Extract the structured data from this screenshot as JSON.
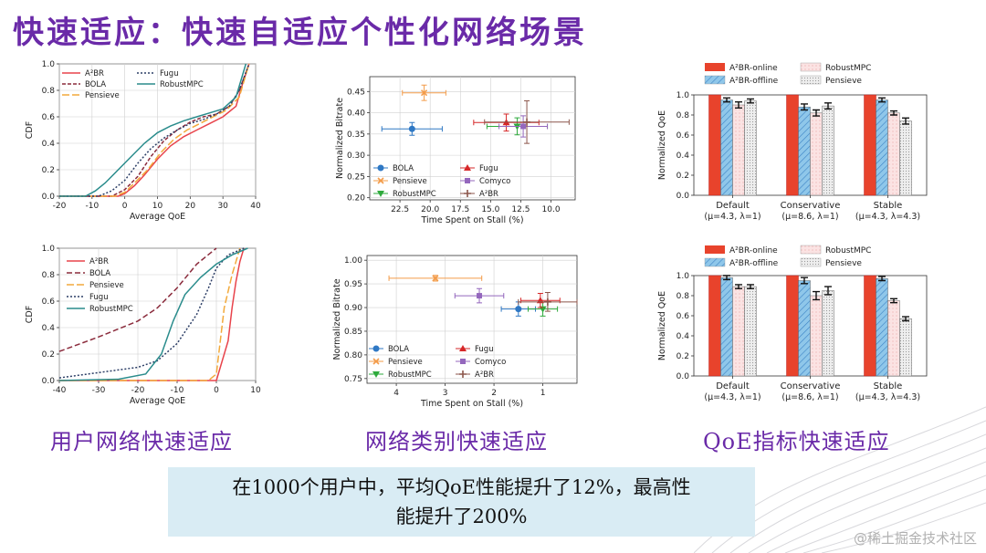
{
  "title": "快速适应：快速自适应个性化网络场景",
  "captions": [
    "用户网络快速适应",
    "网络类别快速适应",
    "QoE指标快速适应"
  ],
  "callout": {
    "line1": "在1000个用户中，平均QoE性能提升了12%，最高性",
    "line2": "能提升了200%"
  },
  "watermark": "@稀土掘金技术社区",
  "colors": {
    "a2br": "#e8434b",
    "bola": "#8b2b3c",
    "pensieve": "#f2a93b",
    "fugu": "#2c3e66",
    "robust": "#2a8c8c",
    "sc_bola": "#2f78c4",
    "sc_pensieve": "#f39c4a",
    "sc_robust": "#2eaa3c",
    "sc_fugu": "#d62728",
    "sc_comyco": "#9467bd",
    "sc_a2br": "#8c564b",
    "bar_online": "#e8432c",
    "bar_offline": "#8fc7ea",
    "bar_robust": "#fbe3e3",
    "bar_pensieve": "#dcdcdc"
  },
  "chart_data": [
    {
      "type": "line",
      "id": "cdf1",
      "xlabel": "Average QoE",
      "ylabel": "CDF",
      "xlim": [
        -20,
        40
      ],
      "ylim": [
        0,
        1
      ],
      "xticks": [
        -20,
        -10,
        0,
        10,
        20,
        30,
        40
      ],
      "yticks": [
        0.0,
        0.2,
        0.4,
        0.6,
        0.8,
        1.0
      ],
      "legend": [
        "A²BR",
        "BOLA",
        "Pensieve",
        "Fugu",
        "RobustMPC"
      ],
      "series": [
        {
          "name": "A²BR",
          "color_key": "a2br",
          "dash": "",
          "points": [
            [
              -20,
              0
            ],
            [
              -2,
              0
            ],
            [
              0,
              0.02
            ],
            [
              3,
              0.08
            ],
            [
              6,
              0.16
            ],
            [
              10,
              0.28
            ],
            [
              14,
              0.38
            ],
            [
              18,
              0.45
            ],
            [
              22,
              0.5
            ],
            [
              26,
              0.55
            ],
            [
              30,
              0.6
            ],
            [
              34,
              0.68
            ],
            [
              36,
              0.85
            ],
            [
              38,
              1.0
            ]
          ]
        },
        {
          "name": "BOLA",
          "color_key": "bola",
          "dash": "4,2",
          "points": [
            [
              -20,
              0
            ],
            [
              -4,
              0
            ],
            [
              0,
              0.05
            ],
            [
              4,
              0.15
            ],
            [
              8,
              0.3
            ],
            [
              12,
              0.42
            ],
            [
              16,
              0.5
            ],
            [
              20,
              0.56
            ],
            [
              24,
              0.6
            ],
            [
              28,
              0.62
            ],
            [
              32,
              0.68
            ],
            [
              35,
              0.8
            ],
            [
              38,
              1.0
            ]
          ]
        },
        {
          "name": "Pensieve",
          "color_key": "pensieve",
          "dash": "8,3",
          "points": [
            [
              -20,
              0
            ],
            [
              -3,
              0
            ],
            [
              0,
              0.03
            ],
            [
              3,
              0.1
            ],
            [
              7,
              0.2
            ],
            [
              11,
              0.33
            ],
            [
              15,
              0.43
            ],
            [
              19,
              0.5
            ],
            [
              23,
              0.55
            ],
            [
              27,
              0.6
            ],
            [
              31,
              0.65
            ],
            [
              35,
              0.75
            ],
            [
              38,
              1.0
            ]
          ]
        },
        {
          "name": "Fugu",
          "color_key": "fugu",
          "dash": "2,2",
          "points": [
            [
              -20,
              0
            ],
            [
              -8,
              0
            ],
            [
              -4,
              0.04
            ],
            [
              0,
              0.12
            ],
            [
              4,
              0.25
            ],
            [
              8,
              0.36
            ],
            [
              12,
              0.44
            ],
            [
              16,
              0.5
            ],
            [
              20,
              0.55
            ],
            [
              24,
              0.58
            ],
            [
              28,
              0.62
            ],
            [
              32,
              0.68
            ],
            [
              35,
              0.8
            ],
            [
              38,
              1.0
            ]
          ]
        },
        {
          "name": "RobustMPC",
          "color_key": "robust",
          "dash": "",
          "points": [
            [
              -20,
              0
            ],
            [
              -12,
              0
            ],
            [
              -9,
              0.04
            ],
            [
              -6,
              0.1
            ],
            [
              -2,
              0.2
            ],
            [
              2,
              0.3
            ],
            [
              6,
              0.4
            ],
            [
              10,
              0.48
            ],
            [
              14,
              0.53
            ],
            [
              18,
              0.57
            ],
            [
              22,
              0.6
            ],
            [
              26,
              0.63
            ],
            [
              30,
              0.66
            ],
            [
              34,
              0.75
            ],
            [
              37,
              1.0
            ]
          ]
        }
      ]
    },
    {
      "type": "line",
      "id": "cdf2",
      "xlabel": "Average QoE",
      "ylabel": "CDF",
      "xlim": [
        -40,
        10
      ],
      "ylim": [
        0,
        1
      ],
      "xticks": [
        -40,
        -30,
        -20,
        -10,
        0,
        10
      ],
      "yticks": [
        0.0,
        0.2,
        0.4,
        0.6,
        0.8,
        1.0
      ],
      "legend": [
        "A²BR",
        "BOLA",
        "Pensieve",
        "Fugu",
        "RobustMPC"
      ],
      "series": [
        {
          "name": "A²BR",
          "color_key": "a2br",
          "dash": "",
          "points": [
            [
              -40,
              0
            ],
            [
              0,
              0
            ],
            [
              1,
              0.1
            ],
            [
              3,
              0.3
            ],
            [
              4,
              0.55
            ],
            [
              5,
              0.75
            ],
            [
              6,
              0.9
            ],
            [
              7,
              1.0
            ]
          ]
        },
        {
          "name": "BOLA",
          "color_key": "bola",
          "dash": "6,3",
          "points": [
            [
              -40,
              0.22
            ],
            [
              -30,
              0.33
            ],
            [
              -20,
              0.45
            ],
            [
              -15,
              0.55
            ],
            [
              -10,
              0.7
            ],
            [
              -5,
              0.88
            ],
            [
              0,
              1.0
            ]
          ]
        },
        {
          "name": "Pensieve",
          "color_key": "pensieve",
          "dash": "8,3",
          "points": [
            [
              -40,
              0
            ],
            [
              -2,
              0
            ],
            [
              0,
              0.05
            ],
            [
              1,
              0.3
            ],
            [
              2,
              0.55
            ],
            [
              4,
              0.8
            ],
            [
              6,
              1.0
            ]
          ]
        },
        {
          "name": "Fugu",
          "color_key": "fugu",
          "dash": "2,2",
          "points": [
            [
              -40,
              0.02
            ],
            [
              -30,
              0.06
            ],
            [
              -20,
              0.1
            ],
            [
              -15,
              0.15
            ],
            [
              -10,
              0.28
            ],
            [
              -5,
              0.5
            ],
            [
              -2,
              0.7
            ],
            [
              0,
              0.85
            ],
            [
              3,
              0.95
            ],
            [
              7,
              1.0
            ]
          ]
        },
        {
          "name": "RobustMPC",
          "color_key": "robust",
          "dash": "",
          "points": [
            [
              -40,
              0
            ],
            [
              -25,
              0.01
            ],
            [
              -18,
              0.05
            ],
            [
              -14,
              0.2
            ],
            [
              -11,
              0.45
            ],
            [
              -8,
              0.65
            ],
            [
              -4,
              0.78
            ],
            [
              0,
              0.88
            ],
            [
              4,
              0.95
            ],
            [
              8,
              1.0
            ]
          ]
        }
      ]
    },
    {
      "type": "scatter",
      "id": "sc1",
      "xlabel": "Time Spent on Stall (%)",
      "ylabel": "Normalized Bitrate",
      "xlim": [
        25,
        8
      ],
      "ylim": [
        0.195,
        0.485
      ],
      "xticks": [
        22.5,
        20.0,
        17.5,
        15.0,
        12.5,
        10.0
      ],
      "yticks": [
        0.2,
        0.25,
        0.3,
        0.35,
        0.4,
        0.45
      ],
      "legend": [
        "BOLA",
        "Pensieve",
        "RobustMPC",
        "Fugu",
        "Comyco",
        "A²BR"
      ],
      "points": [
        {
          "name": "BOLA",
          "color_key": "sc_bola",
          "marker": "circle",
          "x": 21.5,
          "y": 0.362,
          "xerr": 2.5,
          "yerr": 0.015
        },
        {
          "name": "Pensieve",
          "color_key": "sc_pensieve",
          "marker": "x",
          "x": 20.5,
          "y": 0.447,
          "xerr": 1.8,
          "yerr": 0.018
        },
        {
          "name": "RobustMPC",
          "color_key": "sc_robust",
          "marker": "tri-down",
          "x": 12.8,
          "y": 0.368,
          "xerr": 2.5,
          "yerr": 0.02
        },
        {
          "name": "Fugu",
          "color_key": "sc_fugu",
          "marker": "tri-up",
          "x": 13.7,
          "y": 0.377,
          "xerr": 2.7,
          "yerr": 0.02
        },
        {
          "name": "Comyco",
          "color_key": "sc_comyco",
          "marker": "square",
          "x": 12.3,
          "y": 0.368,
          "xerr": 2.0,
          "yerr": 0.025
        },
        {
          "name": "A²BR",
          "color_key": "sc_a2br",
          "marker": "plus",
          "x": 12.0,
          "y": 0.378,
          "xerr": 3.5,
          "yerr": 0.05
        }
      ]
    },
    {
      "type": "scatter",
      "id": "sc2",
      "xlabel": "Time Spent on Stall (%)",
      "ylabel": "Normalized Bitrate",
      "xlim": [
        4.6,
        0.3
      ],
      "ylim": [
        0.74,
        1.01
      ],
      "xticks": [
        4,
        3,
        2,
        1
      ],
      "yticks": [
        0.75,
        0.8,
        0.85,
        0.9,
        0.95,
        1.0
      ],
      "legend": [
        "BOLA",
        "Pensieve",
        "RobustMPC",
        "Fugu",
        "Comyco",
        "A²BR"
      ],
      "points": [
        {
          "name": "BOLA",
          "color_key": "sc_bola",
          "marker": "circle",
          "x": 1.5,
          "y": 0.897,
          "xerr": 0.35,
          "yerr": 0.015
        },
        {
          "name": "Pensieve",
          "color_key": "sc_pensieve",
          "marker": "x",
          "x": 3.2,
          "y": 0.962,
          "xerr": 0.95,
          "yerr": 0.006
        },
        {
          "name": "RobustMPC",
          "color_key": "sc_robust",
          "marker": "tri-down",
          "x": 1.0,
          "y": 0.897,
          "xerr": 0.3,
          "yerr": 0.015
        },
        {
          "name": "Fugu",
          "color_key": "sc_fugu",
          "marker": "tri-up",
          "x": 1.05,
          "y": 0.915,
          "xerr": 0.4,
          "yerr": 0.015
        },
        {
          "name": "Comyco",
          "color_key": "sc_comyco",
          "marker": "square",
          "x": 2.3,
          "y": 0.925,
          "xerr": 0.5,
          "yerr": 0.015
        },
        {
          "name": "A²BR",
          "color_key": "sc_a2br",
          "marker": "plus",
          "x": 0.9,
          "y": 0.912,
          "xerr": 0.6,
          "yerr": 0.02
        }
      ]
    },
    {
      "type": "bar",
      "id": "bar1",
      "ylabel": "Normalized QoE",
      "ylim": [
        0,
        1.0
      ],
      "yticks": [
        0.0,
        0.2,
        0.4,
        0.6,
        0.8,
        1.0
      ],
      "categories": [
        [
          "Default",
          "(μ=4.3, λ=1)"
        ],
        [
          "Conservative",
          "(μ=8.6, λ=1)"
        ],
        [
          "Stable",
          "(μ=4.3, λ=4.3)"
        ]
      ],
      "series": [
        {
          "name": "A²BR-online",
          "color_key": "bar_online",
          "values": [
            1.0,
            1.0,
            1.0
          ],
          "err": [
            0,
            0,
            0
          ]
        },
        {
          "name": "A²BR-offline",
          "color_key": "bar_offline",
          "values": [
            0.95,
            0.88,
            0.95
          ],
          "err": [
            0.02,
            0.03,
            0.02
          ]
        },
        {
          "name": "RobustMPC",
          "color_key": "bar_robust",
          "values": [
            0.9,
            0.82,
            0.82
          ],
          "err": [
            0.03,
            0.03,
            0.02
          ]
        },
        {
          "name": "Pensieve",
          "color_key": "bar_pensieve",
          "values": [
            0.94,
            0.89,
            0.74
          ],
          "err": [
            0.02,
            0.03,
            0.03
          ]
        }
      ]
    },
    {
      "type": "bar",
      "id": "bar2",
      "ylabel": "Normalized QoE",
      "ylim": [
        0,
        1.0
      ],
      "yticks": [
        0.0,
        0.2,
        0.4,
        0.6,
        0.8,
        1.0
      ],
      "categories": [
        [
          "Default",
          "(μ=4.3, λ=1)"
        ],
        [
          "Conservative",
          "(μ=8.6, λ=1)"
        ],
        [
          "Stable",
          "(μ=4.3, λ=4.3)"
        ]
      ],
      "series": [
        {
          "name": "A²BR-online",
          "color_key": "bar_online",
          "values": [
            1.0,
            1.0,
            1.0
          ],
          "err": [
            0,
            0,
            0
          ]
        },
        {
          "name": "A²BR-offline",
          "color_key": "bar_offline",
          "values": [
            0.98,
            0.95,
            0.97
          ],
          "err": [
            0.02,
            0.03,
            0.02
          ]
        },
        {
          "name": "RobustMPC",
          "color_key": "bar_robust",
          "values": [
            0.89,
            0.8,
            0.75
          ],
          "err": [
            0.02,
            0.04,
            0.02
          ]
        },
        {
          "name": "Pensieve",
          "color_key": "bar_pensieve",
          "values": [
            0.89,
            0.85,
            0.57
          ],
          "err": [
            0.02,
            0.04,
            0.02
          ]
        }
      ]
    }
  ]
}
